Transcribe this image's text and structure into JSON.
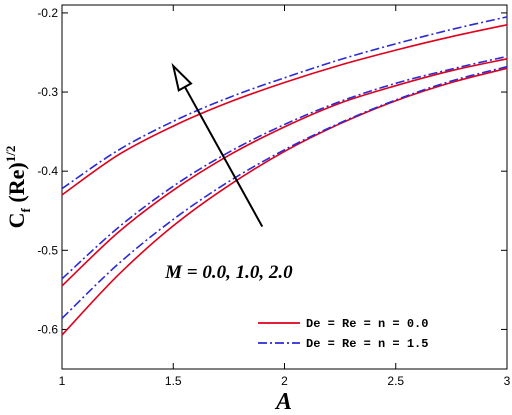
{
  "chart_data": {
    "type": "line",
    "xlabel": "A",
    "ylabel": {
      "base": "C",
      "sub": "f",
      "mid": " (Re)",
      "sup": "1/2"
    },
    "xlim": [
      1,
      3
    ],
    "ylim": [
      -0.65,
      -0.19
    ],
    "xticks": [
      {
        "value": 1,
        "label": "1"
      },
      {
        "value": 1.5,
        "label": "1.5"
      },
      {
        "value": 2,
        "label": "2"
      },
      {
        "value": 2.5,
        "label": "2.5"
      },
      {
        "value": 3,
        "label": "3"
      }
    ],
    "yticks": [
      {
        "value": -0.6,
        "label": "-0.6"
      },
      {
        "value": -0.5,
        "label": "-0.5"
      },
      {
        "value": -0.4,
        "label": "-0.4"
      },
      {
        "value": -0.3,
        "label": "-0.3"
      },
      {
        "value": -0.2,
        "label": "-0.2"
      }
    ],
    "grid": false,
    "legend_position": "bottom-right",
    "legend": [
      {
        "label": "De = Re = n = 0.0",
        "color": "#e0001b",
        "dash": "solid"
      },
      {
        "label": "De = Re = n = 1.5",
        "color": "#2b2bd6",
        "dash": "dashdot"
      }
    ],
    "x": [
      1.0,
      1.25,
      1.5,
      1.75,
      2.0,
      2.25,
      2.5,
      2.75,
      3.0
    ],
    "series": [
      {
        "group": "M = 0.0",
        "style": 0,
        "values": [
          -0.607,
          -0.532,
          -0.469,
          -0.418,
          -0.375,
          -0.34,
          -0.311,
          -0.288,
          -0.27
        ]
      },
      {
        "group": "M = 0.0",
        "style": 1,
        "values": [
          -0.586,
          -0.518,
          -0.461,
          -0.413,
          -0.373,
          -0.339,
          -0.31,
          -0.286,
          -0.268
        ]
      },
      {
        "group": "M = 1.0",
        "style": 0,
        "values": [
          -0.545,
          -0.478,
          -0.424,
          -0.38,
          -0.344,
          -0.314,
          -0.292,
          -0.273,
          -0.258
        ]
      },
      {
        "group": "M = 1.0",
        "style": 1,
        "values": [
          -0.536,
          -0.472,
          -0.419,
          -0.376,
          -0.341,
          -0.312,
          -0.289,
          -0.271,
          -0.255
        ]
      },
      {
        "group": "M = 2.0",
        "style": 0,
        "values": [
          -0.43,
          -0.38,
          -0.343,
          -0.313,
          -0.288,
          -0.266,
          -0.247,
          -0.23,
          -0.215
        ]
      },
      {
        "group": "M = 2.0",
        "style": 1,
        "values": [
          -0.422,
          -0.374,
          -0.337,
          -0.307,
          -0.282,
          -0.259,
          -0.239,
          -0.221,
          -0.205
        ]
      }
    ],
    "annotations": [
      {
        "text": "M = 0.0, 1.0, 2.0",
        "x": 1.75,
        "y": -0.535
      },
      {
        "type": "arrow",
        "from": [
          1.9,
          -0.47
        ],
        "to": [
          1.5,
          -0.267
        ]
      }
    ]
  }
}
